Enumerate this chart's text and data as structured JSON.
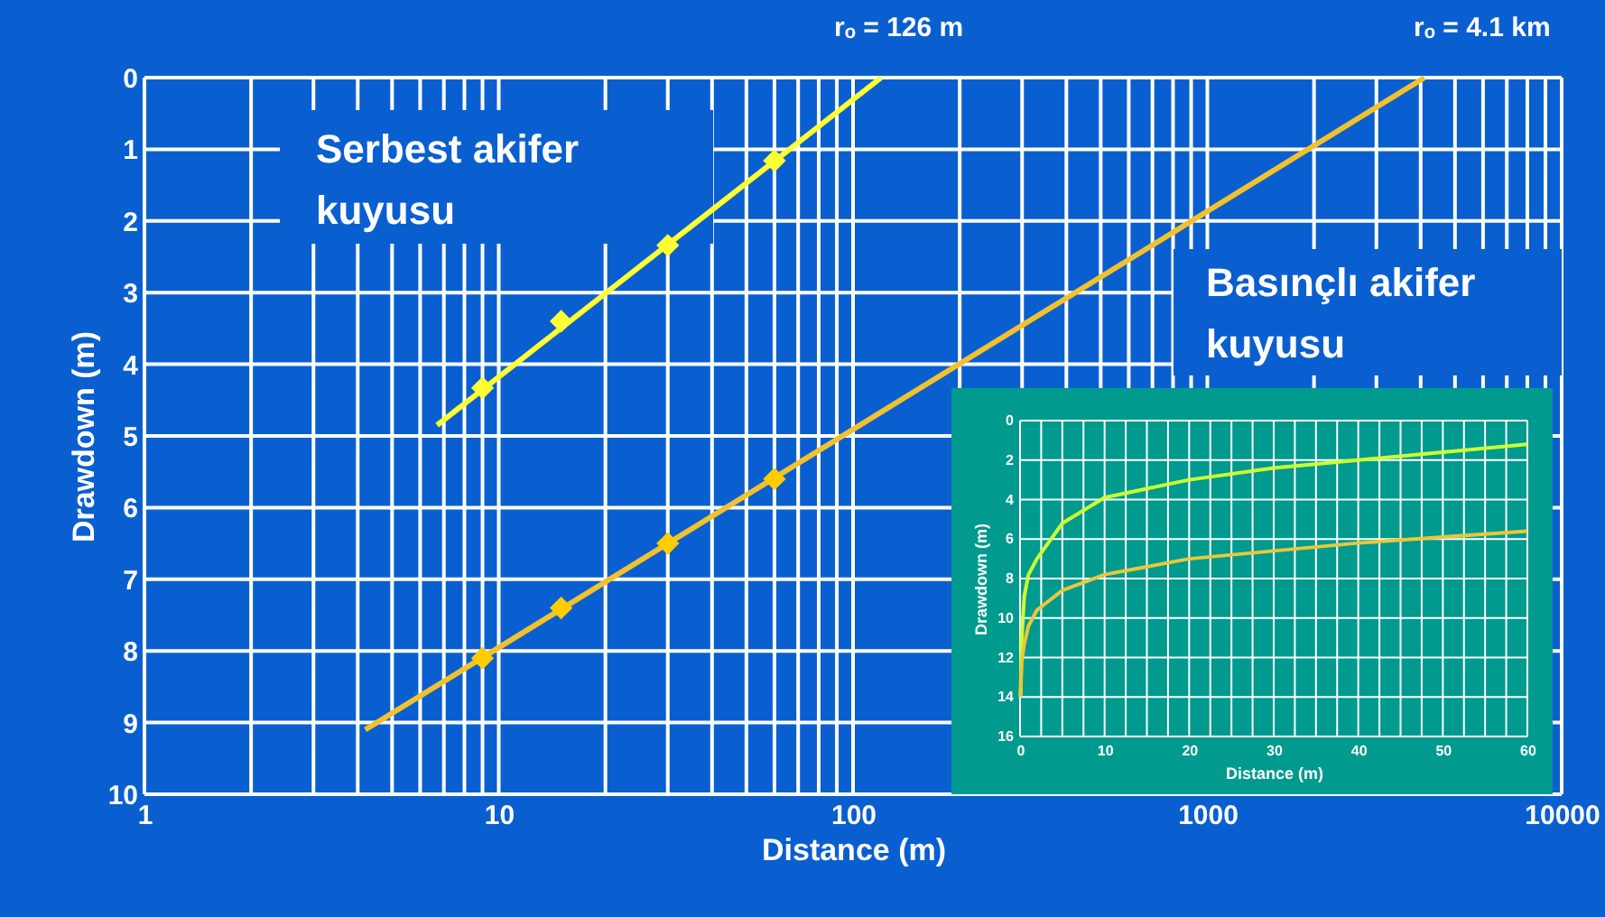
{
  "chart_data": [
    {
      "type": "line",
      "xlabel": "Distance (m)",
      "ylabel": "Drawdown (m)",
      "log": "x",
      "grid": true,
      "xlim": [
        1,
        10000
      ],
      "ylim": [
        10,
        0
      ],
      "xticks": [
        1,
        {
          "value": 2,
          "label": null
        },
        {
          "value": 3,
          "label": null
        },
        {
          "value": 4,
          "label": null
        },
        {
          "value": 5,
          "label": null
        },
        {
          "value": 6,
          "label": null
        },
        {
          "value": 7,
          "label": null
        },
        {
          "value": 8,
          "label": null
        },
        {
          "value": 9,
          "label": null
        },
        10,
        {
          "value": 20,
          "label": null
        },
        {
          "value": 30,
          "label": null
        },
        {
          "value": 40,
          "label": null
        },
        {
          "value": 50,
          "label": null
        },
        {
          "value": 60,
          "label": null
        },
        {
          "value": 70,
          "label": null
        },
        {
          "value": 80,
          "label": null
        },
        {
          "value": 90,
          "label": null
        },
        100,
        {
          "value": 200,
          "label": null
        },
        {
          "value": 300,
          "label": null
        },
        {
          "value": 400,
          "label": null
        },
        {
          "value": 500,
          "label": null
        },
        {
          "value": 600,
          "label": null
        },
        {
          "value": 700,
          "label": null
        },
        {
          "value": 800,
          "label": null
        },
        {
          "value": 900,
          "label": null
        },
        1000,
        {
          "value": 2000,
          "label": null
        },
        {
          "value": 3000,
          "label": null
        },
        {
          "value": 4000,
          "label": null
        },
        {
          "value": 5000,
          "label": null
        },
        {
          "value": 6000,
          "label": null
        },
        {
          "value": 7000,
          "label": null
        },
        {
          "value": 8000,
          "label": null
        },
        {
          "value": 9000,
          "label": null
        },
        10000
      ],
      "yticks": [
        0,
        1,
        2,
        3,
        4,
        5,
        6,
        7,
        8,
        9,
        10
      ],
      "series": [
        {
          "type": "line",
          "color": "#ffff33",
          "x": [
            6.7,
            120
          ],
          "values": [
            4.85,
            0
          ],
          "marker": "none"
        },
        {
          "type": "scatter",
          "color": "#ffff33",
          "x": [
            9,
            15,
            30,
            60
          ],
          "values": [
            4.33,
            3.4,
            2.34,
            1.16
          ],
          "marker": "diamond"
        },
        {
          "type": "line",
          "color": "#f2c12e",
          "x": [
            4.2,
            4100
          ],
          "values": [
            9.1,
            0
          ],
          "marker": "none"
        },
        {
          "type": "scatter",
          "color": "#ffcc00",
          "x": [
            9,
            15,
            30,
            60
          ],
          "values": [
            8.1,
            7.4,
            6.5,
            5.6
          ],
          "marker": "diamond"
        }
      ],
      "annotations": [
        "rₒ = 126 m",
        "rₒ = 4.1 km",
        "Serbest akifer\nkuyusu",
        "Basınçlı akifer\nkuyusu"
      ]
    },
    {
      "type": "line",
      "xlabel": "Distance (m)",
      "ylabel": "Drawdown (m)",
      "grid": true,
      "xlim": [
        0,
        60
      ],
      "ylim": [
        16,
        0
      ],
      "xticks": [
        0,
        {
          "value": 2.5,
          "label": null
        },
        {
          "value": 5,
          "label": null
        },
        {
          "value": 7.5,
          "label": null
        },
        10,
        {
          "value": 12.5,
          "label": null
        },
        {
          "value": 15,
          "label": null
        },
        {
          "value": 17.5,
          "label": null
        },
        20,
        {
          "value": 22.5,
          "label": null
        },
        {
          "value": 25,
          "label": null
        },
        {
          "value": 27.5,
          "label": null
        },
        30,
        {
          "value": 32.5,
          "label": null
        },
        {
          "value": 35,
          "label": null
        },
        {
          "value": 37.5,
          "label": null
        },
        40,
        {
          "value": 42.5,
          "label": null
        },
        {
          "value": 45,
          "label": null
        },
        {
          "value": 47.5,
          "label": null
        },
        50,
        {
          "value": 52.5,
          "label": null
        },
        {
          "value": 55,
          "label": null
        },
        {
          "value": 57.5,
          "label": null
        },
        60
      ],
      "yticks": [
        0,
        2,
        4,
        6,
        8,
        10,
        12,
        14,
        16
      ],
      "x": [
        0.05,
        0.2,
        0.5,
        1,
        2,
        5,
        10,
        20,
        30,
        40,
        50,
        60
      ],
      "series": [
        {
          "color": "#ccff33",
          "values": [
            14,
            11,
            8.9,
            7.8,
            7.0,
            5.2,
            3.9,
            3.0,
            2.4,
            2.0,
            1.6,
            1.2
          ]
        },
        {
          "color": "#e8c83a",
          "values": [
            14,
            12.2,
            11.3,
            10.4,
            9.6,
            8.6,
            7.8,
            7.0,
            6.6,
            6.2,
            5.9,
            5.6
          ]
        }
      ]
    }
  ]
}
